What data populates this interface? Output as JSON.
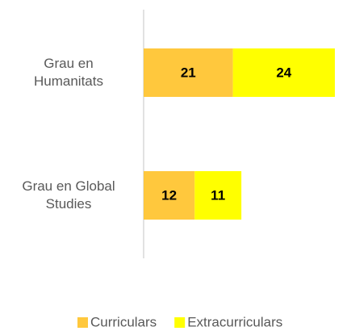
{
  "chart_data": {
    "type": "stacked-barh",
    "categories": [
      "Grau en Humanitats",
      "Grau en Global Studies"
    ],
    "series": [
      {
        "name": "Curriculars",
        "color": "#ffc83d",
        "values": [
          21,
          12
        ]
      },
      {
        "name": "Extracurriculars",
        "color": "#ffff00",
        "values": [
          24,
          11
        ]
      }
    ],
    "xlim": [
      0,
      45
    ]
  }
}
